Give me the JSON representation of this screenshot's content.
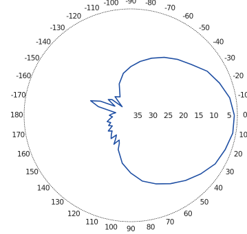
{
  "chart_data": {
    "type": "line",
    "subtype": "polar",
    "angle_zero_direction": "right",
    "angle_direction": "clockwise",
    "angle_tick_labels": [
      "0",
      "10",
      "20",
      "30",
      "40",
      "50",
      "60",
      "70",
      "80",
      "90",
      "100",
      "110",
      "120",
      "130",
      "140",
      "150",
      "160",
      "170",
      "180",
      "-170",
      "-160",
      "-150",
      "-140",
      "-130",
      "-120",
      "-110",
      "-100",
      "-90",
      "-80",
      "-70",
      "-60",
      "-50",
      "-40",
      "-30",
      "-20",
      "-10"
    ],
    "angle_tick_values": [
      0,
      10,
      20,
      30,
      40,
      50,
      60,
      70,
      80,
      90,
      100,
      110,
      120,
      130,
      140,
      150,
      160,
      170,
      180,
      -170,
      -160,
      -150,
      -140,
      -130,
      -120,
      -110,
      -100,
      -90,
      -80,
      -70,
      -60,
      -50,
      -40,
      -30,
      -20,
      -10
    ],
    "radial_tick_labels": [
      "35",
      "30",
      "25",
      "20",
      "15",
      "10",
      "5"
    ],
    "radial_tick_values": [
      35,
      30,
      25,
      20,
      15,
      10,
      5
    ],
    "radial_axis": "attenuation_dB",
    "radial_range": [
      0,
      35
    ],
    "grid": false,
    "color": "#1f4fa3",
    "series": [
      {
        "angles_deg": [
          0,
          10,
          20,
          30,
          40,
          50,
          60,
          70,
          80,
          90,
          100,
          110,
          112,
          115,
          118,
          120,
          123,
          126,
          130,
          135,
          140,
          145,
          150,
          155,
          160,
          165,
          170,
          175,
          180,
          -175,
          -170,
          -165,
          -160,
          -155,
          -150,
          -145,
          -140,
          -135,
          -130,
          -120,
          -110,
          -100,
          -90,
          -80,
          -70,
          -60,
          -50,
          -40,
          -30,
          -20,
          -10,
          0
        ],
        "values": [
          1,
          1,
          2,
          3,
          5,
          7,
          9,
          11,
          13,
          16,
          19,
          23,
          25,
          26,
          25,
          24,
          26,
          27,
          25,
          26,
          27,
          26,
          28,
          27,
          28,
          27,
          28,
          29,
          28,
          29,
          30,
          24,
          21,
          24,
          29,
          26,
          27,
          31,
          27,
          28,
          24,
          21,
          19,
          17,
          15,
          13,
          11,
          9,
          6,
          4,
          2,
          1
        ]
      }
    ]
  }
}
